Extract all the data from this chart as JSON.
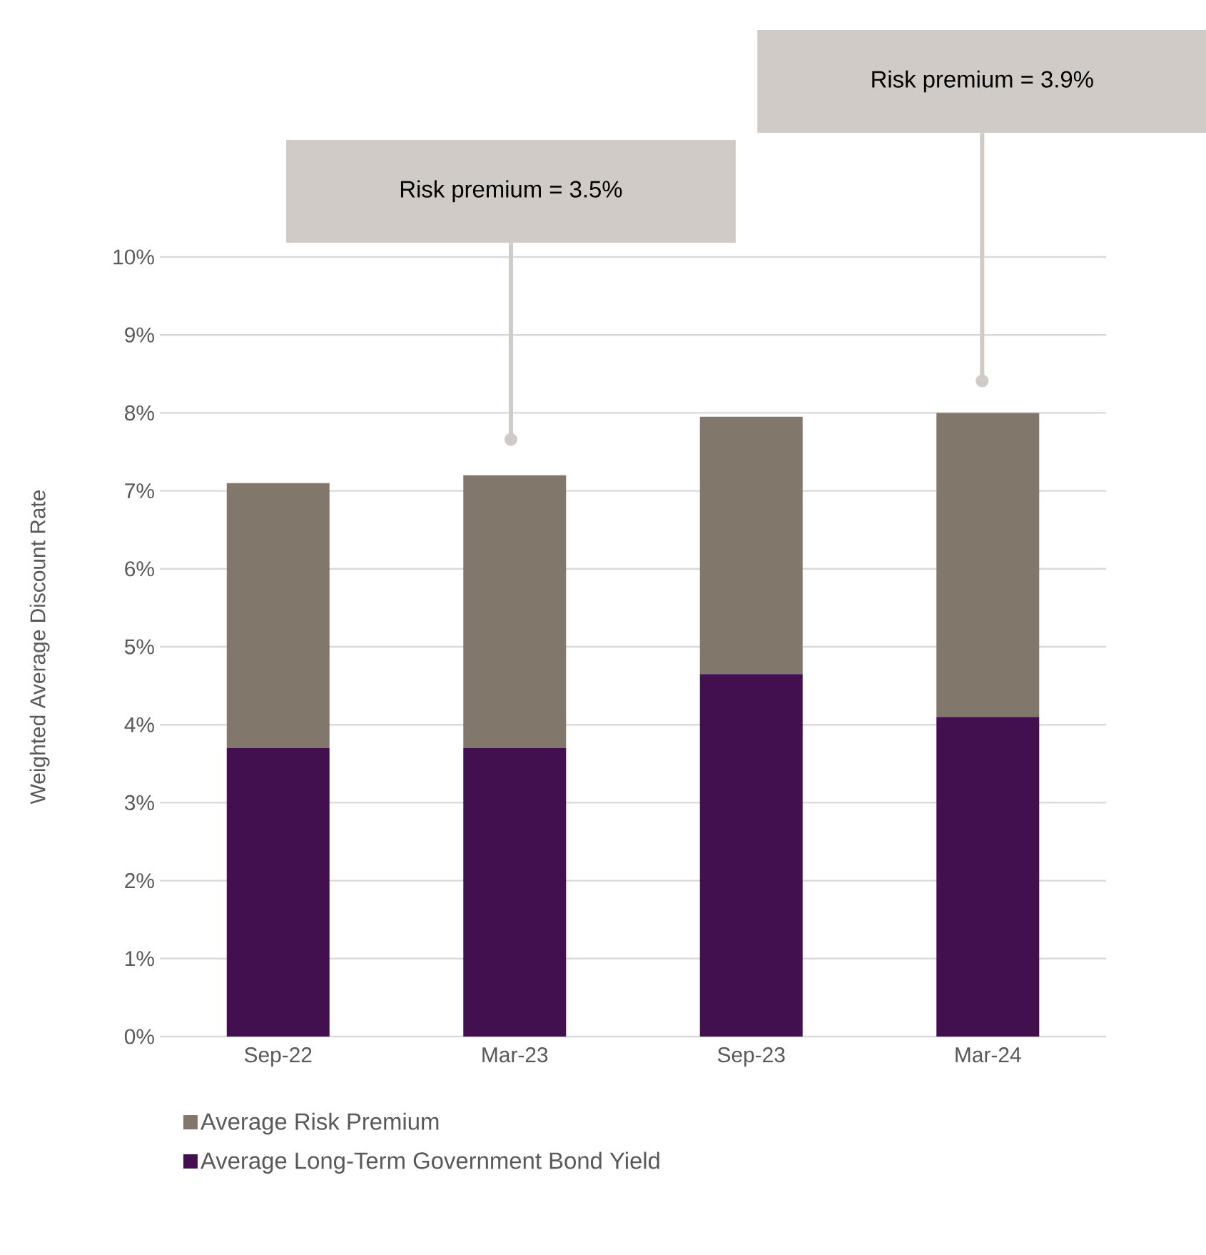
{
  "chart_data": {
    "type": "bar",
    "stacked": true,
    "categories": [
      "Sep-22",
      "Mar-23",
      "Sep-23",
      "Mar-24"
    ],
    "series": [
      {
        "name": "Average Long-Term Government Bond Yield",
        "color": "#43104f",
        "values": [
          3.7,
          3.7,
          4.65,
          4.1
        ]
      },
      {
        "name": "Average Risk Premium",
        "color": "#82776b",
        "values": [
          3.4,
          3.5,
          3.3,
          3.9
        ]
      }
    ],
    "ylabel": "Weighted Average Discount Rate",
    "ylim": [
      0,
      10
    ],
    "yticks": [
      {
        "value": 0,
        "label": "0%"
      },
      {
        "value": 1,
        "label": "1%"
      },
      {
        "value": 2,
        "label": "2%"
      },
      {
        "value": 3,
        "label": "3%"
      },
      {
        "value": 4,
        "label": "4%"
      },
      {
        "value": 5,
        "label": "5%"
      },
      {
        "value": 6,
        "label": "6%"
      },
      {
        "value": 7,
        "label": "7%"
      },
      {
        "value": 8,
        "label": "8%"
      },
      {
        "value": 9,
        "label": "9%"
      },
      {
        "value": 10,
        "label": "10%"
      }
    ],
    "grid": "y",
    "legend": "bottom",
    "annotations": [
      "Risk premium = 3.5%",
      "Risk premium = 3.9%"
    ]
  }
}
